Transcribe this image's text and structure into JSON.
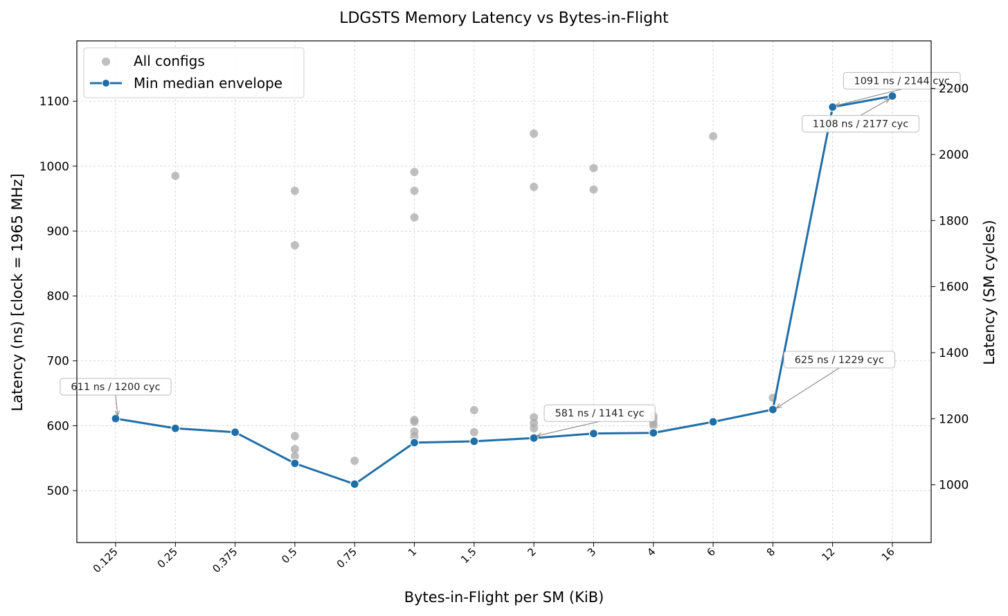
{
  "chart_data": {
    "type": "scatter",
    "title": "LDGSTS Memory Latency vs Bytes-in-Flight",
    "xlabel": "Bytes-in-Flight per SM (KiB)",
    "ylabel": "Latency (ns)  [clock = 1965 MHz]",
    "ylabel_right": "Latency (SM cycles)",
    "x_scale": "categorical",
    "categories": [
      "0.125",
      "0.25",
      "0.375",
      "0.5",
      "0.75",
      "1",
      "1.5",
      "2",
      "3",
      "4",
      "6",
      "8",
      "12",
      "16"
    ],
    "ylim": [
      420,
      1193
    ],
    "y_ticks": [
      500,
      600,
      700,
      800,
      900,
      1000,
      1100
    ],
    "ylim_right": [
      825,
      2344
    ],
    "y_ticks_right": [
      1000,
      1200,
      1400,
      1600,
      1800,
      2000,
      2200
    ],
    "grid": true,
    "legend_position": "top-left",
    "legend": [
      "All configs",
      "Min median envelope"
    ],
    "colors": {
      "scatter": "#aaaaaa",
      "envelope": "#1f6ea8"
    },
    "series": [
      {
        "name": "All configs",
        "kind": "scatter",
        "points": [
          {
            "x": "0.125",
            "y": 611
          },
          {
            "x": "0.25",
            "y": 985
          },
          {
            "x": "0.25",
            "y": 596
          },
          {
            "x": "0.375",
            "y": 590
          },
          {
            "x": "0.5",
            "y": 962
          },
          {
            "x": "0.5",
            "y": 878
          },
          {
            "x": "0.5",
            "y": 584
          },
          {
            "x": "0.5",
            "y": 564
          },
          {
            "x": "0.5",
            "y": 553
          },
          {
            "x": "0.5",
            "y": 542
          },
          {
            "x": "0.75",
            "y": 546
          },
          {
            "x": "0.75",
            "y": 510
          },
          {
            "x": "1",
            "y": 991
          },
          {
            "x": "1",
            "y": 962
          },
          {
            "x": "1",
            "y": 921
          },
          {
            "x": "1",
            "y": 609
          },
          {
            "x": "1",
            "y": 606
          },
          {
            "x": "1",
            "y": 591
          },
          {
            "x": "1",
            "y": 583
          },
          {
            "x": "1",
            "y": 574
          },
          {
            "x": "1.5",
            "y": 624
          },
          {
            "x": "1.5",
            "y": 590
          },
          {
            "x": "1.5",
            "y": 576
          },
          {
            "x": "2",
            "y": 1050
          },
          {
            "x": "2",
            "y": 968
          },
          {
            "x": "2",
            "y": 613
          },
          {
            "x": "2",
            "y": 604
          },
          {
            "x": "2",
            "y": 596
          },
          {
            "x": "2",
            "y": 581
          },
          {
            "x": "3",
            "y": 997
          },
          {
            "x": "3",
            "y": 964
          },
          {
            "x": "3",
            "y": 588
          },
          {
            "x": "4",
            "y": 615
          },
          {
            "x": "4",
            "y": 610
          },
          {
            "x": "4",
            "y": 604
          },
          {
            "x": "4",
            "y": 600
          },
          {
            "x": "4",
            "y": 589
          },
          {
            "x": "6",
            "y": 1046
          },
          {
            "x": "6",
            "y": 606
          },
          {
            "x": "8",
            "y": 643
          },
          {
            "x": "8",
            "y": 625
          },
          {
            "x": "12",
            "y": 1091
          },
          {
            "x": "16",
            "y": 1108
          }
        ]
      },
      {
        "name": "Min median envelope",
        "kind": "line",
        "x": [
          "0.125",
          "0.25",
          "0.375",
          "0.5",
          "0.75",
          "1",
          "1.5",
          "2",
          "3",
          "4",
          "6",
          "8",
          "12",
          "16"
        ],
        "values": [
          611,
          596,
          590,
          542,
          510,
          574,
          576,
          581,
          588,
          589,
          606,
          625,
          1091,
          1108
        ]
      }
    ],
    "annotations": [
      {
        "text": "611 ns / 1200 cyc",
        "x": "0.125",
        "y": 611
      },
      {
        "text": "581 ns / 1141 cyc",
        "x": "2",
        "y": 581
      },
      {
        "text": "625 ns / 1229 cyc",
        "x": "8",
        "y": 625
      },
      {
        "text": "1091 ns / 2144 cyc",
        "x": "12",
        "y": 1091
      },
      {
        "text": "1108 ns / 2177 cyc",
        "x": "16",
        "y": 1108
      }
    ]
  }
}
